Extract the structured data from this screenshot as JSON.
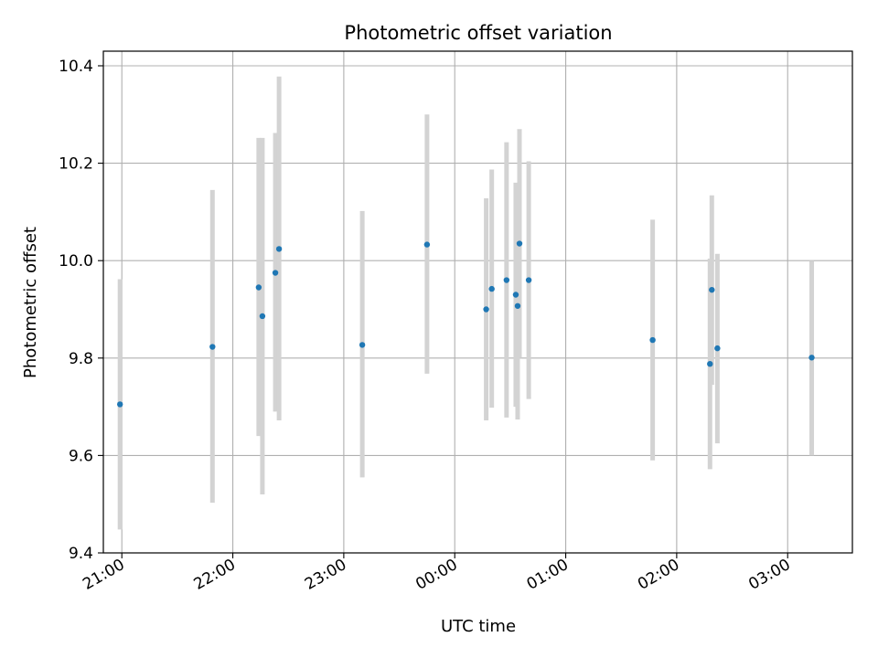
{
  "chart_data": {
    "type": "scatter",
    "title": "Photometric offset variation",
    "xlabel": "UTC time",
    "ylabel": "Photometric offset",
    "x_axis_kind": "time",
    "xlim": [
      "20:50",
      "03:35"
    ],
    "ylim": [
      9.4,
      10.43
    ],
    "grid": true,
    "x_ticks": [
      "21:00",
      "22:00",
      "23:00",
      "00:00",
      "01:00",
      "02:00",
      "03:00"
    ],
    "y_ticks": [
      "9.4",
      "9.6",
      "9.8",
      "10.0",
      "10.2",
      "10.4"
    ],
    "colors": {
      "point": "#1f77b4",
      "errorbar": "#d3d3d3",
      "grid": "#b0b0b0",
      "axes": "#000000"
    },
    "points": [
      {
        "x": "20:59",
        "y": 9.705,
        "low": 9.448,
        "high": 9.962
      },
      {
        "x": "21:49",
        "y": 9.823,
        "low": 9.503,
        "high": 10.145
      },
      {
        "x": "22:14",
        "y": 9.945,
        "low": 9.64,
        "high": 10.252
      },
      {
        "x": "22:16",
        "y": 9.886,
        "low": 9.52,
        "high": 10.252
      },
      {
        "x": "22:23",
        "y": 9.975,
        "low": 9.69,
        "high": 10.262
      },
      {
        "x": "22:25",
        "y": 10.024,
        "low": 9.672,
        "high": 10.378
      },
      {
        "x": "23:10",
        "y": 9.827,
        "low": 9.555,
        "high": 10.102
      },
      {
        "x": "23:45",
        "y": 10.033,
        "low": 9.768,
        "high": 10.3
      },
      {
        "x": "00:17",
        "y": 9.9,
        "low": 9.672,
        "high": 10.128
      },
      {
        "x": "00:20",
        "y": 9.942,
        "low": 9.698,
        "high": 10.187
      },
      {
        "x": "00:28",
        "y": 9.96,
        "low": 9.678,
        "high": 10.243
      },
      {
        "x": "00:33",
        "y": 9.93,
        "low": 9.7,
        "high": 10.16
      },
      {
        "x": "00:34",
        "y": 9.907,
        "low": 9.674,
        "high": 10.14
      },
      {
        "x": "00:35",
        "y": 10.035,
        "low": 9.8,
        "high": 10.27
      },
      {
        "x": "00:40",
        "y": 9.96,
        "low": 9.716,
        "high": 10.204
      },
      {
        "x": "01:47",
        "y": 9.837,
        "low": 9.59,
        "high": 10.084
      },
      {
        "x": "02:18",
        "y": 9.788,
        "low": 9.572,
        "high": 10.004
      },
      {
        "x": "02:19",
        "y": 9.94,
        "low": 9.745,
        "high": 10.134
      },
      {
        "x": "02:22",
        "y": 9.82,
        "low": 9.625,
        "high": 10.014
      },
      {
        "x": "03:13",
        "y": 9.801,
        "low": 9.6,
        "high": 10.0
      }
    ]
  }
}
